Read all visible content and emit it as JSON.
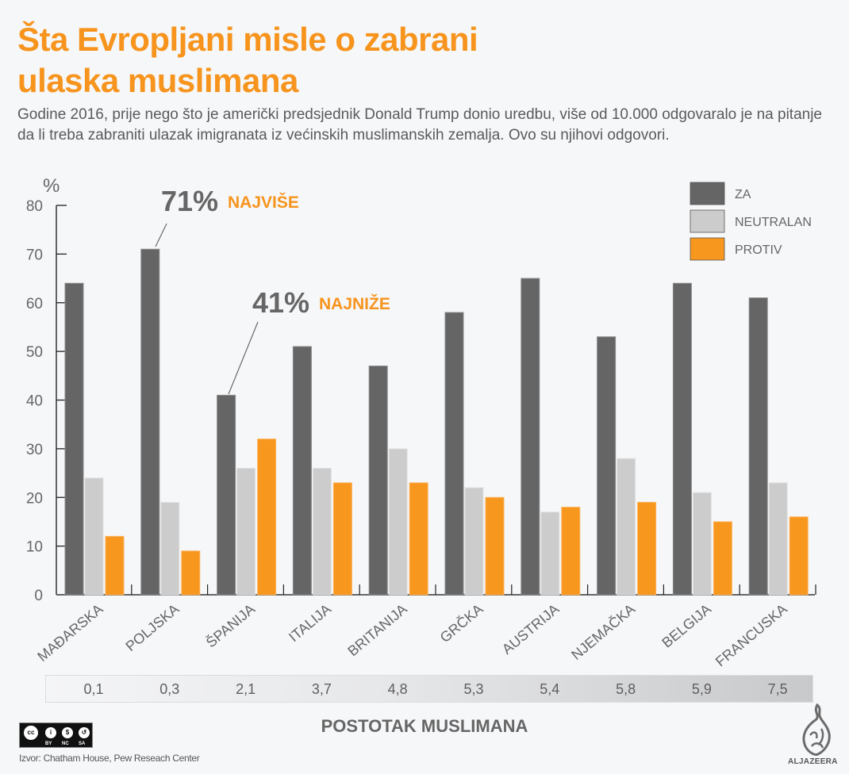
{
  "header": {
    "title_line1": "Šta Evropljani misle o zabrani",
    "title_line2": "ulaska muslimana",
    "subtitle": "Godine 2016, prije nego što je američki predsjednik Donald Trump donio uredbu, više od 10.000 odgovaralo je na pitanje da li treba zabraniti ulazak imigranata iz većinskih muslimanskih zemalja. Ovo su njihovi odgovori."
  },
  "colors": {
    "za": "#656565",
    "neutralan": "#cccccc",
    "protiv": "#f7971e",
    "accent": "#f7941d"
  },
  "chart_data": {
    "type": "bar",
    "title": "Šta Evropljani misle o zabrani ulaska muslimana",
    "ylabel": "%",
    "xlabel": "",
    "ylim": [
      0,
      80
    ],
    "yticks": [
      0,
      10,
      20,
      30,
      40,
      50,
      60,
      70,
      80
    ],
    "grid": false,
    "legend_position": "top-right",
    "categories": [
      "MAĐARSKA",
      "POLJSKA",
      "ŠPANIJA",
      "ITALIJA",
      "BRITANIJA",
      "GRČKA",
      "AUSTRIJA",
      "NJEMAČKA",
      "BELGIJA",
      "FRANCUSKA"
    ],
    "series": [
      {
        "name": "ZA",
        "values": [
          64,
          71,
          41,
          51,
          47,
          58,
          65,
          53,
          64,
          61
        ]
      },
      {
        "name": "NEUTRALAN",
        "values": [
          24,
          19,
          26,
          26,
          30,
          22,
          17,
          28,
          21,
          23
        ]
      },
      {
        "name": "PROTIV",
        "values": [
          12,
          9,
          32,
          23,
          23,
          20,
          18,
          19,
          15,
          16
        ]
      }
    ],
    "annotations": [
      {
        "category": "POLJSKA",
        "series": "ZA",
        "value_label": "71%",
        "text": "NAJVIŠE"
      },
      {
        "category": "ŠPANIJA",
        "series": "ZA",
        "value_label": "41%",
        "text": "NAJNIŽE"
      }
    ],
    "muslim_percentage": {
      "title": "POSTOTAK MUSLIMANA",
      "values": [
        "0,1",
        "0,3",
        "2,1",
        "3,7",
        "4,8",
        "5,3",
        "5,4",
        "5,8",
        "5,9",
        "7,5"
      ]
    }
  },
  "footer": {
    "source": "Izvor: Chatham House, Pew Reseach Center",
    "license": {
      "cc": "cc",
      "by": "BY",
      "nc": "NC",
      "sa": "SA"
    },
    "brand": "ALJAZEERA"
  }
}
